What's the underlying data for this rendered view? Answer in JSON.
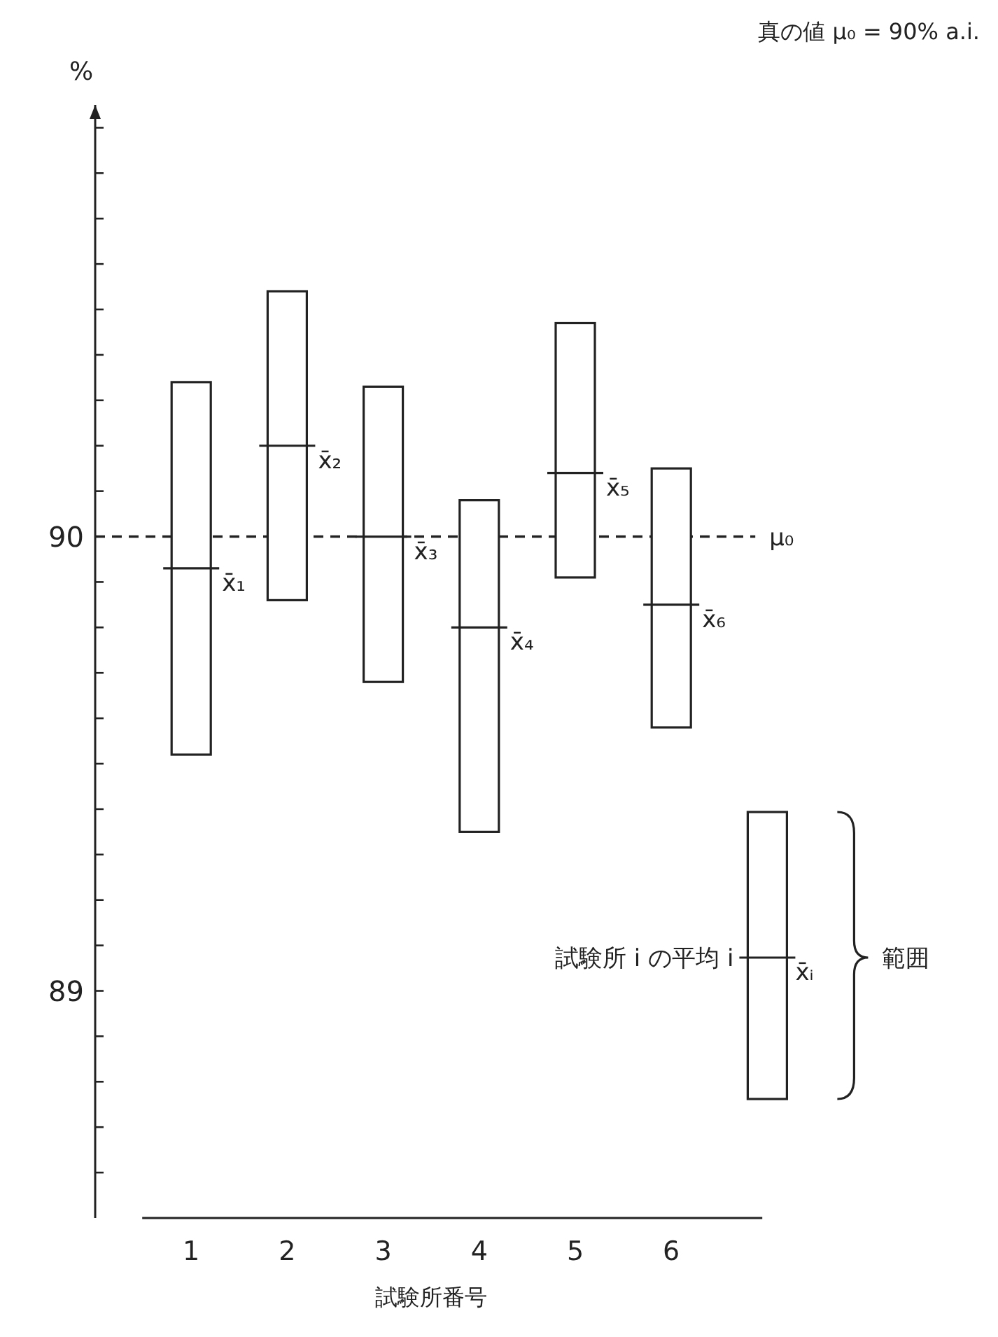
{
  "chart_data": {
    "type": "box",
    "ylabel": "%",
    "xlabel": "試験所番号",
    "categories": [
      "1",
      "2",
      "3",
      "4",
      "5",
      "6"
    ],
    "boxes": [
      {
        "low": 89.52,
        "q1": 89.52,
        "median": 89.93,
        "q3": 90.34,
        "high": 90.34
      },
      {
        "low": 89.86,
        "q1": 89.86,
        "median": 90.2,
        "q3": 90.54,
        "high": 90.54
      },
      {
        "low": 89.68,
        "q1": 89.68,
        "median": 90.0,
        "q3": 90.33,
        "high": 90.33
      },
      {
        "low": 89.35,
        "q1": 89.35,
        "median": 89.8,
        "q3": 90.08,
        "high": 90.08
      },
      {
        "low": 89.91,
        "q1": 89.91,
        "median": 90.14,
        "q3": 90.47,
        "high": 90.47
      },
      {
        "low": 89.58,
        "q1": 89.58,
        "median": 89.85,
        "q3": 90.15,
        "high": 90.15
      }
    ],
    "ylim": [
      88.5,
      90.95
    ],
    "yticks": [
      {
        "value": 88.6,
        "label": null
      },
      {
        "value": 88.7,
        "label": null
      },
      {
        "value": 88.8,
        "label": null
      },
      {
        "value": 88.9,
        "label": null
      },
      89,
      {
        "value": 89.1,
        "label": null
      },
      {
        "value": 89.2,
        "label": null
      },
      {
        "value": 89.3,
        "label": null
      },
      {
        "value": 89.4,
        "label": null
      },
      {
        "value": 89.5,
        "label": null
      },
      {
        "value": 89.6,
        "label": null
      },
      {
        "value": 89.7,
        "label": null
      },
      {
        "value": 89.8,
        "label": null
      },
      {
        "value": 89.9,
        "label": null
      },
      90,
      {
        "value": 90.1,
        "label": null
      },
      {
        "value": 90.2,
        "label": null
      },
      {
        "value": 90.3,
        "label": null
      },
      {
        "value": 90.4,
        "label": null
      },
      {
        "value": 90.5,
        "label": null
      },
      {
        "value": 90.6,
        "label": null
      },
      {
        "value": 90.7,
        "label": null
      },
      {
        "value": 90.8,
        "label": null
      },
      {
        "value": 90.9,
        "label": null
      }
    ],
    "ref_lines": [
      {
        "axis": "y",
        "value": 90,
        "label": "μ₀",
        "line_style": "dashed"
      }
    ],
    "annotations": [
      "真の値  μ₀ = 90% a.i.",
      {
        "text": "x̄₁",
        "x": "1",
        "y": 89.93
      },
      {
        "text": "x̄₂",
        "x": "2",
        "y": 90.2
      },
      {
        "text": "x̄₃",
        "x": "3",
        "y": 90.0
      },
      {
        "text": "x̄₄",
        "x": "4",
        "y": 89.8
      },
      {
        "text": "x̄₅",
        "x": "5",
        "y": 90.14
      },
      {
        "text": "x̄₆",
        "x": "6",
        "y": 89.85
      },
      "試験所 i の平均 i",
      "x̄ᵢ",
      "範囲"
    ],
    "grid": false
  }
}
